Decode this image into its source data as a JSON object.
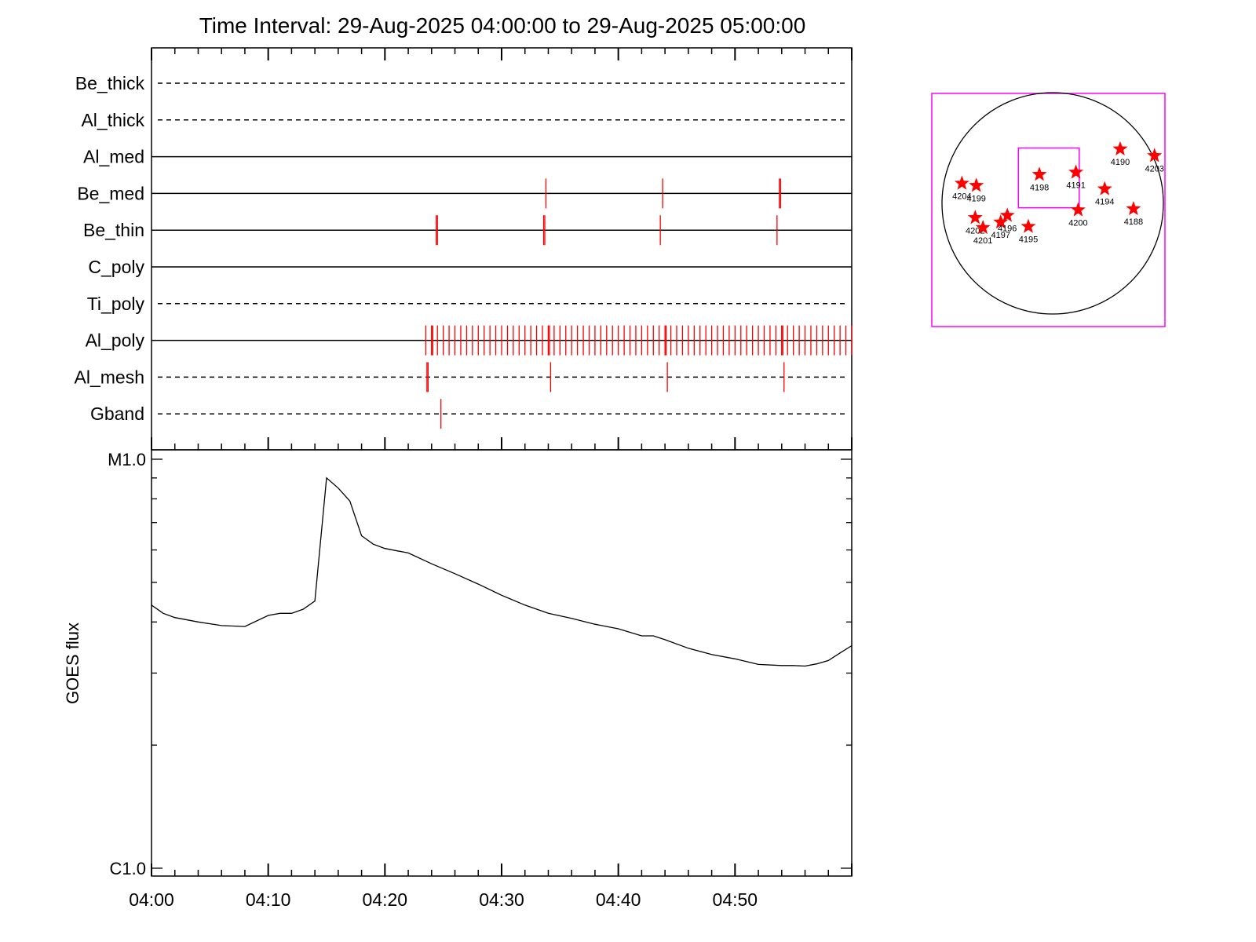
{
  "chart_data": {
    "type": "line",
    "title": "Time Interval: 29-Aug-2025 04:00:00 to 29-Aug-2025 05:00:00",
    "ylabel": "GOES flux",
    "x_tick_labels": [
      "04:00",
      "04:10",
      "04:20",
      "04:30",
      "04:40",
      "04:50"
    ],
    "x_range_minutes": [
      0,
      60
    ],
    "y_scale": "log",
    "y_range": [
      1e-06,
      1e-05
    ],
    "y_tick_labels": [
      "M1.0",
      "C1.0"
    ],
    "colors": {
      "events": "#ff0000",
      "line": "#000000",
      "frame": "#ff00ff"
    },
    "channels": [
      {
        "name": "Be_thick",
        "style": "dashed",
        "events": []
      },
      {
        "name": "Al_thick",
        "style": "dashed",
        "events": []
      },
      {
        "name": "Al_med",
        "style": "solid",
        "events": []
      },
      {
        "name": "Be_med",
        "style": "solid",
        "events": [
          33.8,
          43.8,
          53.8,
          53.9
        ]
      },
      {
        "name": "Be_thin",
        "style": "solid",
        "events": [
          24.4,
          24.5,
          33.6,
          33.7,
          43.6,
          53.6
        ]
      },
      {
        "name": "C_poly",
        "style": "solid",
        "events": []
      },
      {
        "name": "Ti_poly",
        "style": "dashed",
        "events": []
      },
      {
        "name": "Al_poly",
        "style": "solid",
        "events_start": 23.5,
        "events_end": 60,
        "events_step": 0.5,
        "events_extra": [
          24.0,
          24.1,
          34.0,
          34.1,
          44.0,
          44.1,
          54.0,
          54.1
        ]
      },
      {
        "name": "Al_mesh",
        "style": "dashed",
        "events": [
          23.6,
          23.7,
          34.2,
          44.2,
          54.2
        ]
      },
      {
        "name": "Gband",
        "style": "dashed",
        "events": [
          24.8
        ]
      }
    ],
    "goes_flux": {
      "x": [
        0,
        1,
        2,
        4,
        6,
        8,
        10,
        11,
        12,
        13,
        14,
        15,
        16,
        17,
        18,
        19,
        20,
        22,
        24,
        26,
        28,
        30,
        32,
        34,
        36,
        38,
        40,
        42,
        43,
        44,
        46,
        48,
        50,
        52,
        54,
        55,
        56,
        57,
        58,
        59,
        60
      ],
      "y": [
        4.4e-06,
        4.2e-06,
        4.1e-06,
        4e-06,
        3.92e-06,
        3.9e-06,
        4.15e-06,
        4.2e-06,
        4.2e-06,
        4.3e-06,
        4.5e-06,
        9e-06,
        8.5e-06,
        7.9e-06,
        6.5e-06,
        6.2e-06,
        6.05e-06,
        5.9e-06,
        5.55e-06,
        5.25e-06,
        4.95e-06,
        4.65e-06,
        4.4e-06,
        4.2e-06,
        4.08e-06,
        3.95e-06,
        3.85e-06,
        3.7e-06,
        3.7e-06,
        3.62e-06,
        3.45e-06,
        3.33e-06,
        3.25e-06,
        3.15e-06,
        3.13e-06,
        3.13e-06,
        3.12e-06,
        3.16e-06,
        3.22e-06,
        3.36e-06,
        3.5e-06
      ]
    },
    "sun_map": {
      "regions": [
        {
          "label": "4204",
          "x": -0.82,
          "y": 0.18
        },
        {
          "label": "4199",
          "x": -0.69,
          "y": 0.16
        },
        {
          "label": "4198",
          "x": -0.12,
          "y": 0.26
        },
        {
          "label": "4191",
          "x": 0.21,
          "y": 0.28
        },
        {
          "label": "4190",
          "x": 0.61,
          "y": 0.49
        },
        {
          "label": "4203",
          "x": 0.92,
          "y": 0.43
        },
        {
          "label": "4194",
          "x": 0.47,
          "y": 0.13
        },
        {
          "label": "4188",
          "x": 0.73,
          "y": -0.05
        },
        {
          "label": "4200",
          "x": 0.23,
          "y": -0.06
        },
        {
          "label": "4202",
          "x": -0.7,
          "y": -0.13
        },
        {
          "label": "4201",
          "x": -0.63,
          "y": -0.22
        },
        {
          "label": "4197",
          "x": -0.47,
          "y": -0.17
        },
        {
          "label": "4196",
          "x": -0.41,
          "y": -0.11
        },
        {
          "label": "4195",
          "x": -0.22,
          "y": -0.21
        }
      ],
      "fov_box": {
        "x0": -0.31,
        "y0": -0.04,
        "x1": 0.24,
        "y1": 0.5
      }
    }
  }
}
